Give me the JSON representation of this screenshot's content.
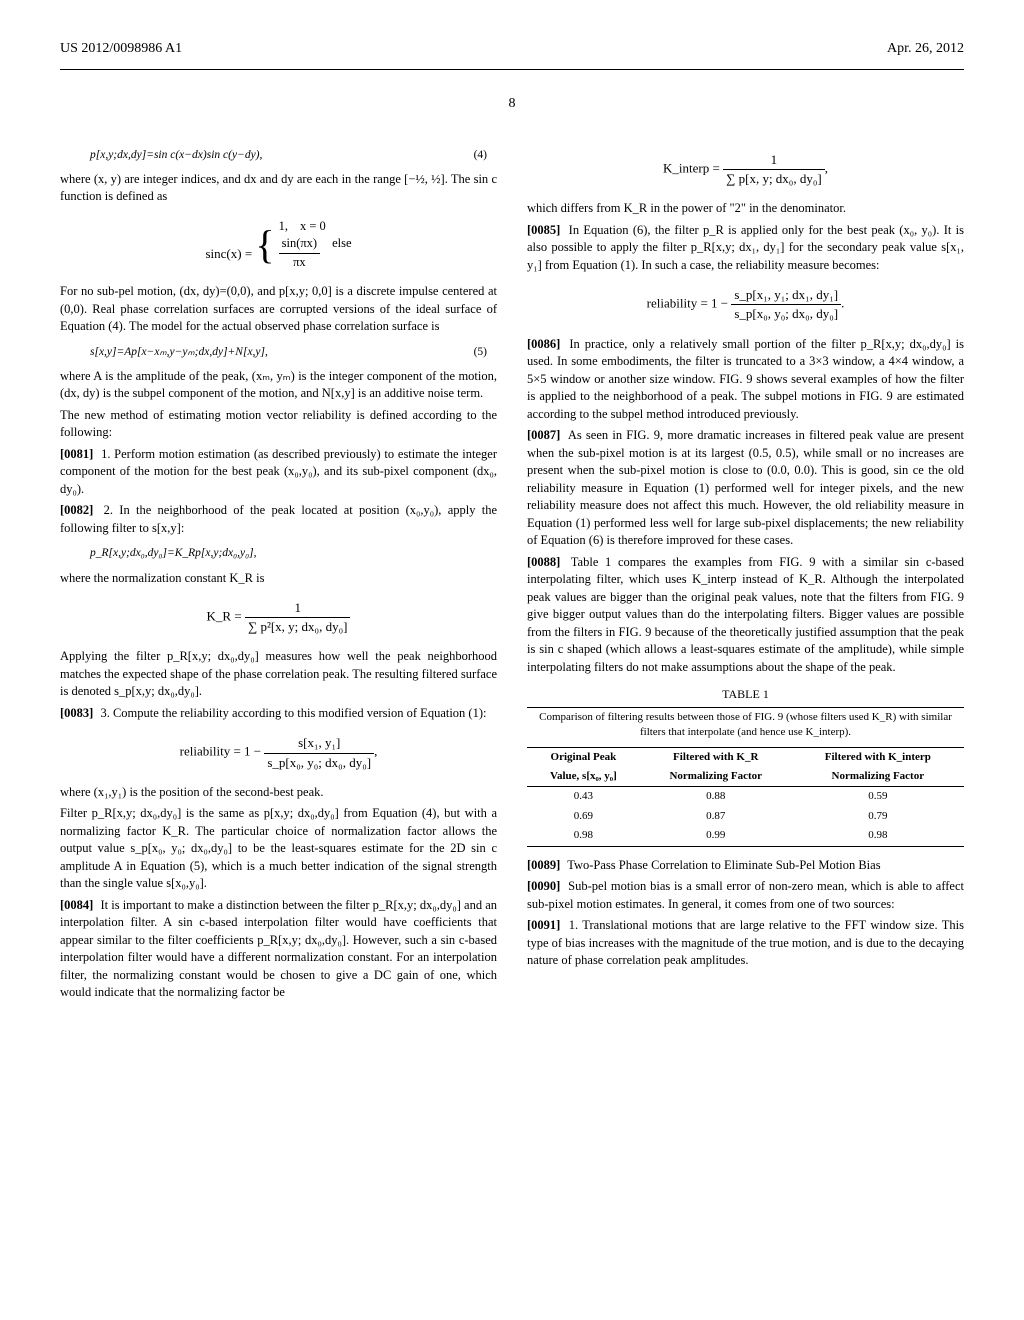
{
  "header": {
    "pub_number": "US 2012/0098986 A1",
    "date": "Apr. 26, 2012"
  },
  "page_number": "8",
  "left": {
    "eq4": "p[x,y;dx,dy]=sin c(x−dx)sin c(y−dy),",
    "eq4_num": "(4)",
    "p1": "where (x, y) are integer indices, and dx and dy are each in the range [−½, ½]. The sin c function is defined as",
    "sinc_lhs": "sinc(x) = ",
    "sinc_row1_val": "1,",
    "sinc_row1_cond": "x = 0",
    "sinc_row2_num": "sin(πx)",
    "sinc_row2_den": "πx",
    "sinc_row2_cond": "else",
    "p2": "For no sub-pel motion, (dx, dy)=(0,0), and p[x,y; 0,0] is a discrete impulse centered at (0,0). Real phase correlation surfaces are corrupted versions of the ideal surface of Equation (4). The model for the actual observed phase correlation surface is",
    "eq5": "s[x,y]=Ap[x−xₘ,y−yₘ;dx,dy]+N[x,y],",
    "eq5_num": "(5)",
    "p3": "where A is the amplitude of the peak, (xₘ, yₘ) is the integer component of the motion, (dx, dy) is the subpel component of the motion, and N[x,y] is an additive noise term.",
    "p4": "The new method of estimating motion vector reliability is defined according to the following:",
    "p81_ref": "[0081]",
    "p81": "1. Perform motion estimation (as described previously) to estimate the integer component of the motion for the best peak (x₀,y₀), and its sub-pixel component (dx₀, dy₀).",
    "p82_ref": "[0082]",
    "p82": "2. In the neighborhood of the peak located at position (x₀,y₀), apply the following filter to s[x,y]:",
    "eq_pR": "p_R[x,y;dx₀,dy₀]=K_Rp[x,y;dx₀,y₀],",
    "p5": "where the normalization constant K_R is",
    "kr_lhs": "K_R = ",
    "kr_num": "1",
    "kr_den": "∑ p²[x, y; dx₀, dy₀]",
    "p6": "Applying the filter p_R[x,y; dx₀,dy₀] measures how well the peak neighborhood matches the expected shape of the phase correlation peak. The resulting filtered surface is denoted s_p[x,y; dx₀,dy₀].",
    "p83_ref": "[0083]",
    "p83": "3. Compute the reliability according to this modified version of Equation (1):",
    "rel_lhs": "reliability = 1 − ",
    "rel_num": "s[x₁, y₁]",
    "rel_den": "s_p[x₀, y₀; dx₀, dy₀]",
    "p7": "where (x₁,y₁) is the position of the second-best peak.",
    "p8": "Filter p_R[x,y; dx₀,dy₀] is the same as p[x,y; dx₀,dy₀] from Equation (4), but with a normalizing factor K_R. The particular choice of normalization factor allows the output value s_p[x₀, y₀; dx₀,dy₀] to be the least-squares estimate for the 2D sin c amplitude A in Equation (5), which is a much better indication of the signal strength than the single value s[x₀,y₀].",
    "p84_ref": "[0084]",
    "p84": "It is important to make a distinction between the filter p_R[x,y; dx₀,dy₀] and an interpolation filter. A sin c-based interpolation filter would have coefficients that appear similar to the filter coefficients p_R[x,y; dx₀,dy₀]. However, such a sin c-based interpolation filter would have a different normalization constant. For an interpolation filter, the normalizing constant would be chosen to give a DC gain of one, which would indicate that the normalizing factor be"
  },
  "right": {
    "kint_lhs": "K_interp = ",
    "kint_num": "1",
    "kint_den": "∑ p[x, y; dx₀, dy₀]",
    "p1": "which differs from K_R in the power of \"2\" in the denominator.",
    "p85_ref": "[0085]",
    "p85": "In Equation (6), the filter p_R is applied only for the best peak (x₀, y₀). It is also possible to apply the filter p_R[x,y; dx₁, dy₁] for the secondary peak value s[x₁, y₁] from Equation (1). In such a case, the reliability measure becomes:",
    "rel2_lhs": "reliability = 1 − ",
    "rel2_num": "s_p[x₁, y₁; dx₁, dy₁]",
    "rel2_den": "s_p[x₀, y₀; dx₀, dy₀]",
    "p86_ref": "[0086]",
    "p86": "In practice, only a relatively small portion of the filter p_R[x,y; dx₀,dy₀] is used. In some embodiments, the filter is truncated to a 3×3 window, a 4×4 window, a 5×5 window or another size window. FIG. 9 shows several examples of how the filter is applied to the neighborhood of a peak. The subpel motions in FIG. 9 are estimated according to the subpel method introduced previously.",
    "p87_ref": "[0087]",
    "p87": "As seen in FIG. 9, more dramatic increases in filtered peak value are present when the sub-pixel motion is at its largest (0.5, 0.5), while small or no increases are present when the sub-pixel motion is close to (0.0, 0.0). This is good, sin ce the old reliability measure in Equation (1) performed well for integer pixels, and the new reliability measure does not affect this much. However, the old reliability measure in Equation (1) performed less well for large sub-pixel displacements; the new reliability of Equation (6) is therefore improved for these cases.",
    "p88_ref": "[0088]",
    "p88": "Table 1 compares the examples from FIG. 9 with a similar sin c-based interpolating filter, which uses K_interp instead of K_R. Although the interpolated peak values are bigger than the original peak values, note that the filters from FIG. 9 give bigger output values than do the interpolating filters. Bigger values are possible from the filters in FIG. 9 because of the theoretically justified assumption that the peak is sin c shaped (which allows a least-squares estimate of the amplitude), while simple interpolating filters do not make assumptions about the shape of the peak.",
    "table_title": "TABLE 1",
    "table_caption": "Comparison of filtering results between those of FIG. 9 (whose filters used K_R) with similar filters that interpolate (and hence use K_interp).",
    "table_h1a": "Original Peak",
    "table_h1b": "Value, s[x₀, y₀]",
    "table_h2a": "Filtered with K_R",
    "table_h2b": "Normalizing Factor",
    "table_h3a": "Filtered with K_interp",
    "table_h3b": "Normalizing Factor",
    "rows": [
      [
        "0.43",
        "0.88",
        "0.59"
      ],
      [
        "0.69",
        "0.87",
        "0.79"
      ],
      [
        "0.98",
        "0.99",
        "0.98"
      ]
    ],
    "p89_ref": "[0089]",
    "p89": "Two-Pass Phase Correlation to Eliminate Sub-Pel Motion Bias",
    "p90_ref": "[0090]",
    "p90": "Sub-pel motion bias is a small error of non-zero mean, which is able to affect sub-pixel motion estimates. In general, it comes from one of two sources:",
    "p91_ref": "[0091]",
    "p91": "1. Translational motions that are large relative to the FFT window size. This type of bias increases with the magnitude of the true motion, and is due to the decaying nature of phase correlation peak amplitudes."
  }
}
